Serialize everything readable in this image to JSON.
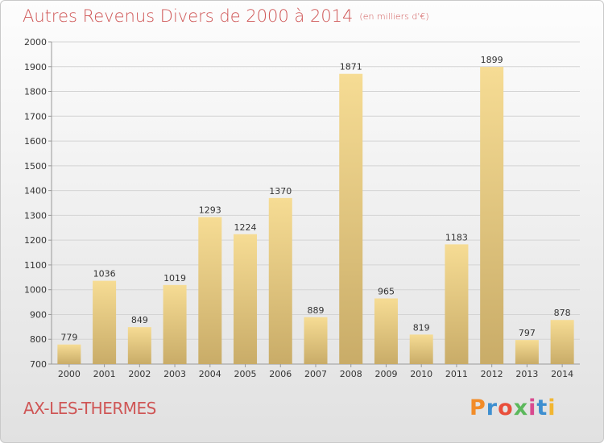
{
  "header": {
    "title": "Autres Revenus Divers de 2000 à 2014",
    "subtitle": "(en milliers d'€)"
  },
  "footer": {
    "commune": "AX-LES-THERMES",
    "logo": "Proxiti",
    "logo_colors": [
      "#f28c28",
      "#3e8fd0",
      "#e94f3b",
      "#5cb85c",
      "#d84a8f",
      "#3e8fd0",
      "#f2b632"
    ]
  },
  "chart_data": {
    "type": "bar",
    "title": "Autres Revenus Divers de 2000 à 2014",
    "subtitle": "(en milliers d'€)",
    "categories": [
      "2000",
      "2001",
      "2002",
      "2003",
      "2004",
      "2005",
      "2006",
      "2007",
      "2008",
      "2009",
      "2010",
      "2011",
      "2012",
      "2013",
      "2014"
    ],
    "values": [
      779,
      1036,
      849,
      1019,
      1293,
      1224,
      1370,
      889,
      1871,
      965,
      819,
      1183,
      1899,
      797,
      878
    ],
    "ylim": [
      700,
      2000
    ],
    "yticks": [
      700,
      800,
      900,
      1000,
      1100,
      1200,
      1300,
      1400,
      1500,
      1600,
      1700,
      1800,
      1900,
      2000
    ],
    "grid": true,
    "bar_color": "#e8cc82",
    "xlabel": "",
    "ylabel": ""
  }
}
